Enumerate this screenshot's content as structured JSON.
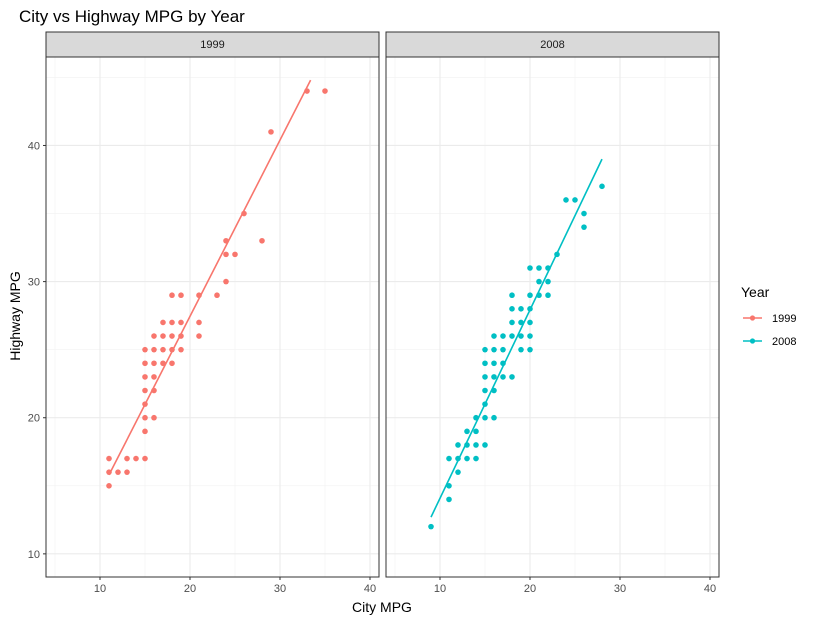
{
  "chart_data": {
    "type": "scatter",
    "title": "City vs Highway MPG by Year",
    "xlabel": "City MPG",
    "ylabel": "Highway MPG",
    "xlim": [
      4,
      41
    ],
    "ylim": [
      8.3,
      46.5
    ],
    "xticks": [
      10,
      20,
      30,
      40
    ],
    "yticks": [
      10,
      20,
      30,
      40
    ],
    "grid": true,
    "legend": {
      "title": "Year",
      "position": "right",
      "entries": [
        {
          "label": "1999",
          "color": "#F8766D"
        },
        {
          "label": "2008",
          "color": "#00BFC4"
        }
      ]
    },
    "facets": [
      {
        "label": "1999",
        "color": "#F8766D",
        "fit_line": {
          "x": [
            11,
            33.4
          ],
          "y": [
            15.8,
            44.8
          ]
        },
        "points": [
          [
            11,
            15
          ],
          [
            11,
            16
          ],
          [
            11,
            17
          ],
          [
            12,
            16
          ],
          [
            13,
            16
          ],
          [
            13,
            17
          ],
          [
            14,
            17
          ],
          [
            15,
            17
          ],
          [
            15,
            19
          ],
          [
            15,
            20
          ],
          [
            15,
            21
          ],
          [
            15,
            22
          ],
          [
            15,
            23
          ],
          [
            15,
            24
          ],
          [
            15,
            25
          ],
          [
            16,
            20
          ],
          [
            16,
            22
          ],
          [
            16,
            23
          ],
          [
            16,
            24
          ],
          [
            16,
            25
          ],
          [
            16,
            26
          ],
          [
            17,
            24
          ],
          [
            17,
            25
          ],
          [
            17,
            26
          ],
          [
            17,
            27
          ],
          [
            18,
            24
          ],
          [
            18,
            25
          ],
          [
            18,
            26
          ],
          [
            18,
            27
          ],
          [
            18,
            29
          ],
          [
            19,
            25
          ],
          [
            19,
            26
          ],
          [
            19,
            27
          ],
          [
            19,
            29
          ],
          [
            21,
            26
          ],
          [
            21,
            27
          ],
          [
            21,
            29
          ],
          [
            23,
            29
          ],
          [
            24,
            30
          ],
          [
            24,
            32
          ],
          [
            24,
            33
          ],
          [
            25,
            32
          ],
          [
            26,
            35
          ],
          [
            28,
            33
          ],
          [
            29,
            41
          ],
          [
            33,
            44
          ],
          [
            35,
            44
          ]
        ]
      },
      {
        "label": "2008",
        "color": "#00BFC4",
        "fit_line": {
          "x": [
            9,
            28
          ],
          "y": [
            12.7,
            39
          ]
        },
        "points": [
          [
            9,
            12
          ],
          [
            11,
            14
          ],
          [
            11,
            15
          ],
          [
            11,
            17
          ],
          [
            12,
            16
          ],
          [
            12,
            17
          ],
          [
            12,
            18
          ],
          [
            13,
            17
          ],
          [
            13,
            18
          ],
          [
            13,
            19
          ],
          [
            14,
            17
          ],
          [
            14,
            18
          ],
          [
            14,
            19
          ],
          [
            14,
            20
          ],
          [
            15,
            18
          ],
          [
            15,
            20
          ],
          [
            15,
            21
          ],
          [
            15,
            22
          ],
          [
            15,
            23
          ],
          [
            15,
            24
          ],
          [
            15,
            25
          ],
          [
            16,
            20
          ],
          [
            16,
            22
          ],
          [
            16,
            23
          ],
          [
            16,
            24
          ],
          [
            16,
            25
          ],
          [
            16,
            26
          ],
          [
            17,
            23
          ],
          [
            17,
            24
          ],
          [
            17,
            25
          ],
          [
            17,
            26
          ],
          [
            18,
            23
          ],
          [
            18,
            26
          ],
          [
            18,
            27
          ],
          [
            18,
            28
          ],
          [
            18,
            29
          ],
          [
            19,
            25
          ],
          [
            19,
            26
          ],
          [
            19,
            27
          ],
          [
            19,
            28
          ],
          [
            20,
            25
          ],
          [
            20,
            26
          ],
          [
            20,
            27
          ],
          [
            20,
            28
          ],
          [
            20,
            29
          ],
          [
            20,
            31
          ],
          [
            21,
            29
          ],
          [
            21,
            30
          ],
          [
            21,
            31
          ],
          [
            22,
            29
          ],
          [
            22,
            30
          ],
          [
            22,
            31
          ],
          [
            23,
            32
          ],
          [
            24,
            36
          ],
          [
            25,
            36
          ],
          [
            26,
            34
          ],
          [
            26,
            35
          ],
          [
            28,
            37
          ]
        ]
      }
    ]
  }
}
